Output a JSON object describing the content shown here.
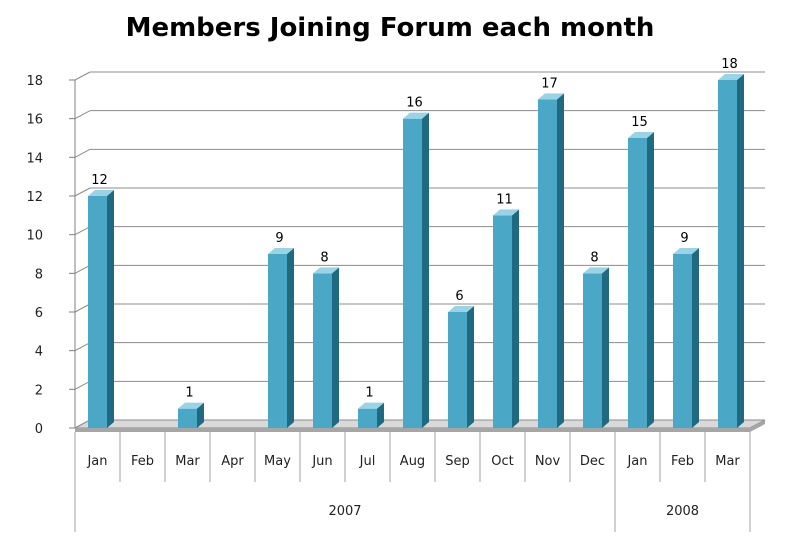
{
  "chart_data": {
    "type": "bar",
    "title": "Members Joining Forum each month",
    "xlabel": "",
    "ylabel": "",
    "ylim": [
      0,
      18
    ],
    "yticks": [
      0,
      2,
      4,
      6,
      8,
      10,
      12,
      14,
      16,
      18
    ],
    "grid": true,
    "legend": "none",
    "bar_color": "#4aa8c6",
    "categories": [
      "Jan",
      "Feb",
      "Mar",
      "Apr",
      "May",
      "Jun",
      "Jul",
      "Aug",
      "Sep",
      "Oct",
      "Nov",
      "Dec",
      "Jan",
      "Feb",
      "Mar"
    ],
    "groups": [
      {
        "label": "2007",
        "count": 12
      },
      {
        "label": "2008",
        "count": 3
      }
    ],
    "values": [
      12,
      0,
      1,
      0,
      9,
      8,
      1,
      16,
      6,
      11,
      17,
      8,
      15,
      9,
      18
    ],
    "data_labels": [
      "12",
      "",
      "1",
      "",
      "9",
      "8",
      "1",
      "16",
      "6",
      "11",
      "17",
      "8",
      "15",
      "9",
      "18"
    ]
  }
}
